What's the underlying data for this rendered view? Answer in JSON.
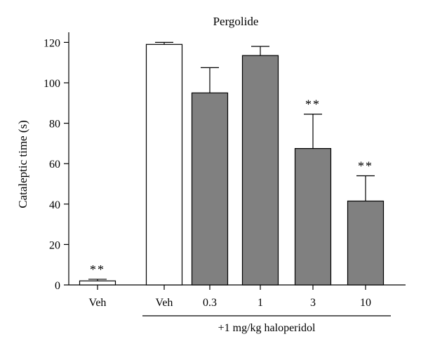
{
  "chart_data": {
    "type": "bar",
    "title": "Pergolide",
    "ylabel": "Cataleptic time (s)",
    "xlabel": "",
    "ylim": [
      0,
      125
    ],
    "yticks": [
      0,
      20,
      40,
      60,
      80,
      100,
      120
    ],
    "categories": [
      "Veh",
      "Veh",
      "0.3",
      "1",
      "3",
      "10"
    ],
    "values": [
      2,
      119,
      95,
      113.5,
      67.5,
      41.5
    ],
    "errors": [
      0.8,
      1,
      12.5,
      4.5,
      17,
      12.5
    ],
    "fill": [
      "white",
      "white",
      "gray",
      "gray",
      "gray",
      "gray"
    ],
    "significance": [
      "**",
      "",
      "",
      "",
      "**",
      "**"
    ],
    "group_label": "+1 mg/kg haloperidol",
    "group_categories": [
      "Veh",
      "0.3",
      "1",
      "3",
      "10"
    ],
    "colors": {
      "white": "#ffffff",
      "gray": "#808080",
      "stroke": "#000000"
    }
  }
}
